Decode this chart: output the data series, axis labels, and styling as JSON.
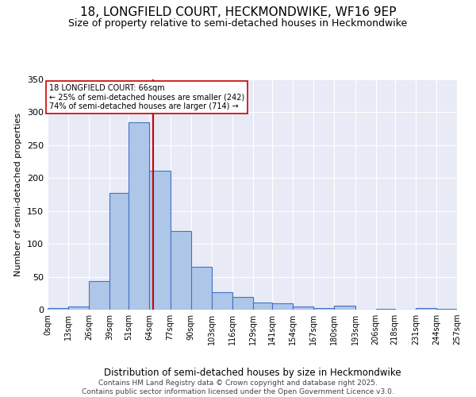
{
  "title": "18, LONGFIELD COURT, HECKMONDWIKE, WF16 9EP",
  "subtitle": "Size of property relative to semi-detached houses in Heckmondwike",
  "xlabel": "Distribution of semi-detached houses by size in Heckmondwike",
  "ylabel": "Number of semi-detached properties",
  "bins": [
    0,
    13,
    26,
    39,
    51,
    64,
    77,
    90,
    103,
    116,
    129,
    141,
    154,
    167,
    180,
    193,
    206,
    218,
    231,
    244,
    257
  ],
  "bin_labels": [
    "0sqm",
    "13sqm",
    "26sqm",
    "39sqm",
    "51sqm",
    "64sqm",
    "77sqm",
    "90sqm",
    "103sqm",
    "116sqm",
    "129sqm",
    "141sqm",
    "154sqm",
    "167sqm",
    "180sqm",
    "193sqm",
    "206sqm",
    "218sqm",
    "231sqm",
    "244sqm",
    "257sqm"
  ],
  "counts": [
    2,
    5,
    44,
    178,
    285,
    211,
    119,
    65,
    26,
    19,
    11,
    10,
    5,
    3,
    6,
    0,
    1,
    0,
    2,
    1
  ],
  "bar_color": "#aec6e8",
  "bar_edge_color": "#4472c4",
  "property_line_x": 66,
  "annotation_title": "18 LONGFIELD COURT: 66sqm",
  "annotation_line1": "← 25% of semi-detached houses are smaller (242)",
  "annotation_line2": "74% of semi-detached houses are larger (714) →",
  "vline_color": "#cc0000",
  "annotation_box_edge": "#cc0000",
  "background_color": "#e8eaf6",
  "ylim": [
    0,
    350
  ],
  "yticks": [
    0,
    50,
    100,
    150,
    200,
    250,
    300,
    350
  ],
  "footer_line1": "Contains HM Land Registry data © Crown copyright and database right 2025.",
  "footer_line2": "Contains public sector information licensed under the Open Government Licence v3.0."
}
